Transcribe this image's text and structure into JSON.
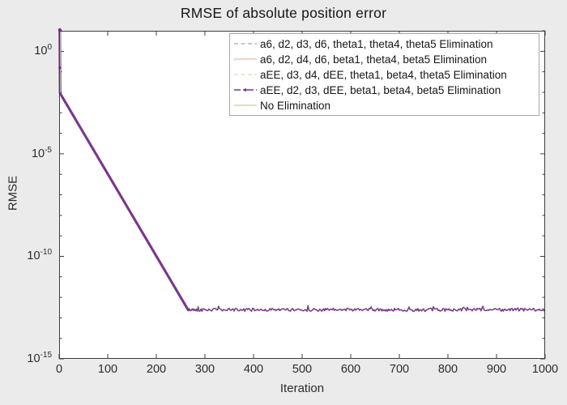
{
  "figure": {
    "background_color": "#ebebeb",
    "plot_background_color": "#ffffff",
    "axis_color": "#3d3d3d",
    "text_color": "#2b2b2b"
  },
  "chart_data": {
    "type": "line",
    "title": "RMSE of absolute position error",
    "xlabel": "Iteration",
    "ylabel": "RMSE",
    "xlim": [
      0,
      1000
    ],
    "x_ticks": [
      0,
      100,
      200,
      300,
      400,
      500,
      600,
      700,
      800,
      900,
      1000
    ],
    "y_scale": "log",
    "ylim_log10": [
      -15,
      1
    ],
    "y_major_tick_exponents": [
      0,
      -5,
      -10,
      -15
    ],
    "grid": false,
    "legend_position": "top-right-inside",
    "series": [
      {
        "label": "a6, d2, d3, d6, theta1, theta4, theta5 Elimination",
        "color": "#aeb9c6",
        "style": "dashed",
        "marker": "none"
      },
      {
        "label": "a6, d2, d4, d6, beta1, theta4, beta5 Elimination",
        "color": "#f1c5a7",
        "style": "solid",
        "marker": "none"
      },
      {
        "label": "aEE, d3, d4, dEE, theta1, beta4, theta5 Elimination",
        "color": "#ebe2ba",
        "style": "dashed",
        "marker": "none"
      },
      {
        "label": "aEE, d2, d3, dEE, beta1, beta4, beta5 Elimination",
        "color": "#7d3391",
        "style": "dashdot",
        "marker": "dot"
      },
      {
        "label": "No Elimination",
        "color": "#c9d7ad",
        "style": "solid",
        "marker": "none"
      }
    ],
    "note": "All five series overlap almost exactly; the purple series with dot markers is drawn on top and is the visible curve.",
    "visible_curve_log10_points": [
      [
        0,
        1.2
      ],
      [
        2,
        -2.05
      ],
      [
        50,
        -3.97
      ],
      [
        100,
        -5.98
      ],
      [
        150,
        -7.98
      ],
      [
        200,
        -9.99
      ],
      [
        250,
        -11.99
      ],
      [
        266,
        -12.62
      ],
      [
        300,
        -12.6
      ],
      [
        400,
        -12.6
      ],
      [
        500,
        -12.6
      ],
      [
        600,
        -12.6
      ],
      [
        700,
        -12.6
      ],
      [
        800,
        -12.6
      ],
      [
        900,
        -12.6
      ],
      [
        1000,
        -12.6
      ]
    ],
    "decay_rate_log10_per_iteration": -0.0401,
    "convergence_floor_log10": -12.62,
    "floor_noise_band_log10": 0.18
  }
}
